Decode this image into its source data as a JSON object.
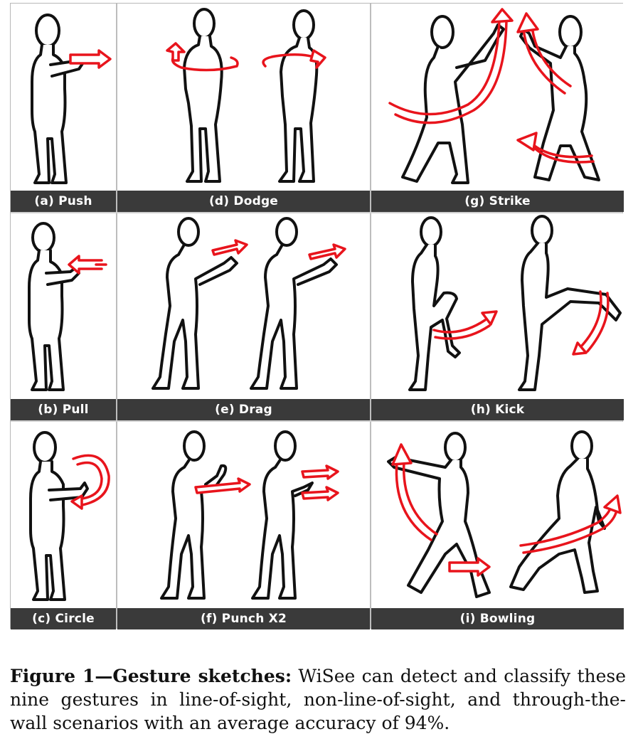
{
  "panels": [
    {
      "id": "a",
      "label": "(a) Push"
    },
    {
      "id": "b",
      "label": "(b) Pull"
    },
    {
      "id": "c",
      "label": "(c) Circle"
    },
    {
      "id": "d",
      "label": "(d) Dodge"
    },
    {
      "id": "e",
      "label": "(e) Drag"
    },
    {
      "id": "f",
      "label": "(f) Punch X2"
    },
    {
      "id": "g",
      "label": "(g) Strike"
    },
    {
      "id": "h",
      "label": "(h) Kick"
    },
    {
      "id": "i",
      "label": "(i) Bowling"
    }
  ],
  "caption": {
    "prefix": "Figure 1—Gesture sketches:",
    "text": " WiSee can detect and classify these nine gestures in line-of-sight, non-line-of-sight, and through-the-wall scenarios with an average accuracy of 94%."
  },
  "colors": {
    "arrow": "#e8141c",
    "label_bar": "#3a3a3a",
    "figure_line": "#111111"
  }
}
